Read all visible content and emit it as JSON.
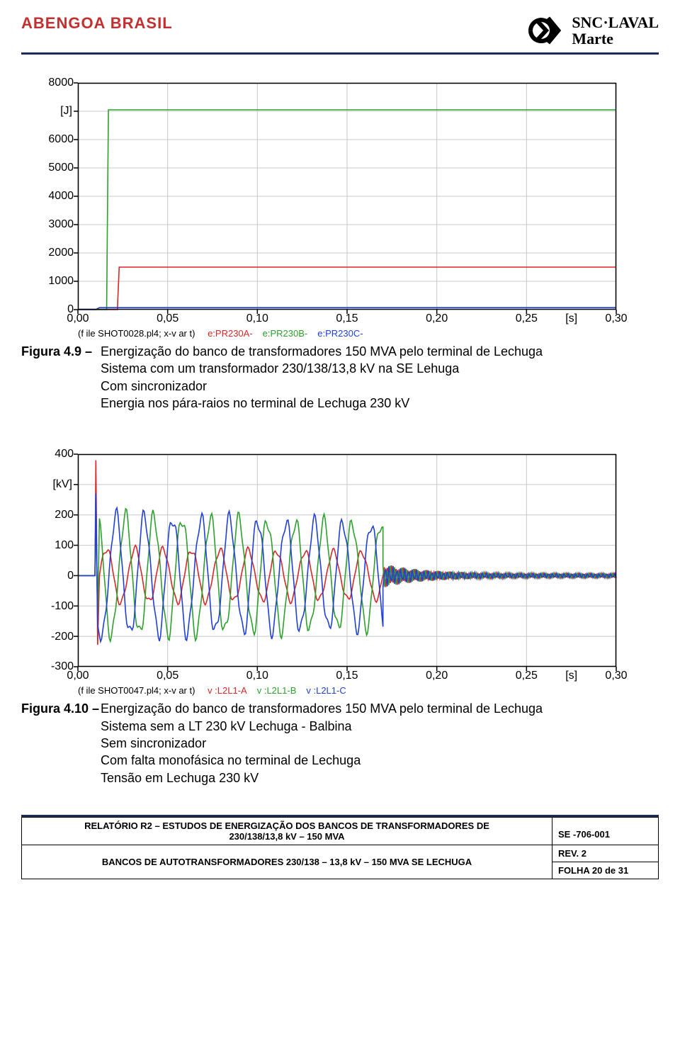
{
  "header": {
    "left_brand": "ABENGOA BRASIL",
    "left_brand_color": "#c23030",
    "right_brand_line1": "SNC·LAVAL",
    "right_brand_line2": "Marte",
    "right_brand_color": "#000000",
    "rule_color": "#1a2b5c"
  },
  "chart1": {
    "type": "line",
    "y_unit": "[J]",
    "x_unit": "[s]",
    "yticks": [
      0,
      1000,
      2000,
      3000,
      4000,
      5000,
      6000,
      7000,
      8000
    ],
    "ylim": [
      0,
      8000
    ],
    "xticks": [
      "0,00",
      "0,05",
      "0,10",
      "0,15",
      "0,20",
      "0,25",
      "[s]",
      "0,30"
    ],
    "xlim": [
      0.0,
      0.3
    ],
    "grid_color": "#c8c8c8",
    "border_color": "#000000",
    "background_color": "#ffffff",
    "axis_fontsize": 16,
    "series": [
      {
        "name": "e:PR230A-",
        "color": "#d62728",
        "points": [
          [
            0.0,
            0
          ],
          [
            0.022,
            0
          ],
          [
            0.023,
            1500
          ],
          [
            0.3,
            1500
          ]
        ]
      },
      {
        "name": "e:PR230B-",
        "color": "#2ca02c",
        "points": [
          [
            0.0,
            0
          ],
          [
            0.016,
            0
          ],
          [
            0.017,
            7050
          ],
          [
            0.3,
            7050
          ]
        ]
      },
      {
        "name": "e:PR230C-",
        "color": "#1f3fd6",
        "points": [
          [
            0.0,
            0
          ],
          [
            0.01,
            0
          ],
          [
            0.012,
            70
          ],
          [
            0.3,
            70
          ]
        ]
      }
    ],
    "src_prefix": "(f ile SHOT0028.pl4; x-v ar t)",
    "src_prefix_color": "#000000",
    "caption_fignum": "Figura 4.9 –",
    "caption_lines": [
      "Energização do banco de transformadores 150 MVA pelo terminal de Lechuga",
      "Sistema com um transformador 230/138/13,8 kV na SE Lehuga",
      "Com sincronizador",
      "Energia nos pára-raios no terminal de Lechuga 230 kV"
    ]
  },
  "chart2": {
    "type": "line",
    "y_unit": "[kV]",
    "x_unit": "[s]",
    "yticks": [
      -300,
      -200,
      -100,
      0,
      100,
      200,
      300,
      400
    ],
    "ylim": [
      -300,
      400
    ],
    "xticks": [
      "0,00",
      "0,05",
      "0,10",
      "0,15",
      "0,20",
      "0,25",
      "[s]",
      "0,30"
    ],
    "xlim": [
      0.0,
      0.3
    ],
    "grid_color": "#c8c8c8",
    "border_color": "#000000",
    "background_color": "#ffffff",
    "axis_fontsize": 16,
    "transient_start": 0.01,
    "transient_end": 0.17,
    "decay_end": 0.3,
    "cycles_in_transient": 10,
    "series": [
      {
        "name": "v :L2L1-A",
        "color": "#d62728",
        "initial_spike": 380,
        "osc_amp": 90,
        "decay_amp": 8,
        "phase": 0.0
      },
      {
        "name": "v :L2L1-B",
        "color": "#2ca02c",
        "initial_spike": 230,
        "osc_amp": 200,
        "decay_amp": 8,
        "phase": 2.094
      },
      {
        "name": "v :L2L1-C",
        "color": "#1f3fd6",
        "initial_spike": 270,
        "osc_amp": 200,
        "decay_amp": 8,
        "phase": 4.188
      }
    ],
    "src_prefix": "(f ile SHOT0047.pl4; x-v ar t)",
    "src_prefix_color": "#000000",
    "caption_fignum": "Figura 4.10 –",
    "caption_lines": [
      "Energização do banco de transformadores 150 MVA pelo terminal de Lechuga",
      "Sistema sem a LT 230 kV Lechuga - Balbina",
      "Sem sincronizador",
      "Com falta monofásica no terminal de Lechuga",
      "Tensão em Lechuga 230 kV"
    ]
  },
  "footer": {
    "line1": "RELATÓRIO R2 – ESTUDOS DE ENERGIZAÇÃO DOS BANCOS DE TRANSFORMADORES DE",
    "line2": "230/138/13,8 kV – 150 MVA",
    "line3": "BANCOS DE AUTOTRANSFORMADORES 230/138 – 13,8 kV – 150 MVA SE LECHUGA",
    "code": "SE -706-001",
    "rev": "REV. 2",
    "page": "FOLHA 20 de 31",
    "rule_color": "#1a2b5c"
  }
}
